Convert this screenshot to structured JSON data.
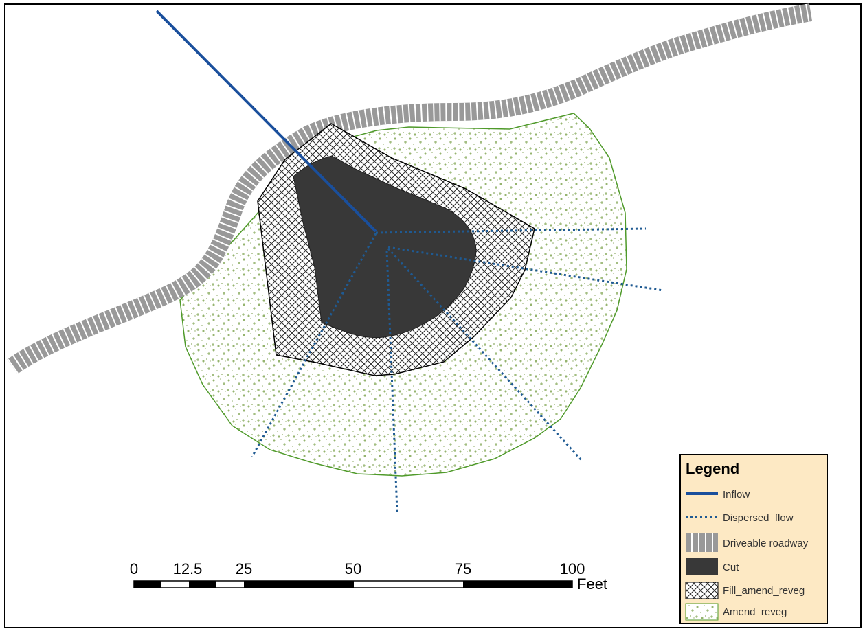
{
  "map": {
    "legend": {
      "title": "Legend",
      "items": [
        {
          "key": "inflow",
          "label": "Inflow",
          "symbol": "solid-line",
          "color": "#1a4f9c"
        },
        {
          "key": "dispersed",
          "label": "Dispersed_flow",
          "symbol": "dotted-line",
          "color": "#1f5a92"
        },
        {
          "key": "road",
          "label": "Driveable roadway",
          "symbol": "striped-block",
          "color": "#9a9a9a"
        },
        {
          "key": "cut",
          "label": "Cut",
          "symbol": "solid-fill",
          "color": "#383838"
        },
        {
          "key": "fill",
          "label": "Fill_amend_reveg",
          "symbol": "crosshatch-fill",
          "color": "#2b2b2b"
        },
        {
          "key": "amend",
          "label": "Amend_reveg",
          "symbol": "stipple-fill",
          "color": "#6d9a3a"
        }
      ],
      "background": "#fde9c4"
    },
    "scale_bar": {
      "labels": [
        "0",
        "12.5",
        "25",
        "50",
        "75",
        "100"
      ],
      "unit": "Feet",
      "values": [
        0,
        12.5,
        25,
        50,
        75,
        100
      ]
    }
  }
}
